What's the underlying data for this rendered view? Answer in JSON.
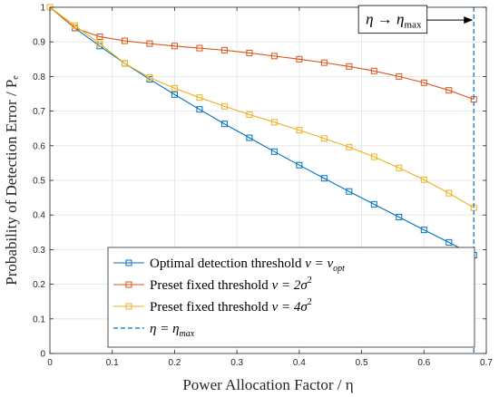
{
  "chart_data": {
    "type": "line",
    "xlabel": "Power Allocation Factor / η",
    "ylabel": "Probability of Detection Error / Pₑ",
    "xlim": [
      0,
      0.7
    ],
    "ylim": [
      0,
      1
    ],
    "xticks": [
      0,
      0.1,
      0.2,
      0.3,
      0.4,
      0.5,
      0.6,
      0.7
    ],
    "xtick_labels": [
      "0",
      "0.1",
      "0.2",
      "0.3",
      "0.4",
      "0.5",
      "0.6",
      "0.7"
    ],
    "yticks": [
      0,
      0.1,
      0.2,
      0.3,
      0.4,
      0.5,
      0.6,
      0.7,
      0.8,
      0.9,
      1
    ],
    "ytick_labels": [
      "0",
      "0.1",
      "0.2",
      "0.3",
      "0.4",
      "0.5",
      "0.6",
      "0.7",
      "0.8",
      "0.9",
      "1"
    ],
    "grid": true,
    "legend_position": "bottom-right",
    "x": [
      0,
      0.04,
      0.08,
      0.12,
      0.16,
      0.2,
      0.24,
      0.28,
      0.32,
      0.36,
      0.4,
      0.44,
      0.48,
      0.52,
      0.56,
      0.6,
      0.64,
      0.68
    ],
    "series": [
      {
        "name": "Optimal detection threshold ν = ν_opt",
        "color": "#0072BD",
        "marker": "square",
        "values": [
          1.0,
          0.94,
          0.888,
          0.838,
          0.792,
          0.748,
          0.705,
          0.663,
          0.623,
          0.583,
          0.544,
          0.506,
          0.468,
          0.431,
          0.394,
          0.357,
          0.321,
          0.284
        ]
      },
      {
        "name": "Preset fixed threshold ν = 2σ²",
        "color": "#D95319",
        "marker": "square",
        "values": [
          1.0,
          0.94,
          0.915,
          0.903,
          0.895,
          0.888,
          0.882,
          0.876,
          0.868,
          0.859,
          0.85,
          0.84,
          0.829,
          0.816,
          0.8,
          0.782,
          0.76,
          0.734
        ]
      },
      {
        "name": "Preset fixed threshold ν = 4σ²",
        "color": "#EDB120",
        "marker": "square",
        "values": [
          1.0,
          0.947,
          0.895,
          0.838,
          0.797,
          0.766,
          0.739,
          0.714,
          0.69,
          0.668,
          0.645,
          0.621,
          0.596,
          0.568,
          0.536,
          0.502,
          0.463,
          0.421
        ]
      },
      {
        "name": "η = η_max",
        "color": "#0072BD",
        "style": "dashed-vertical",
        "x_value": 0.68
      }
    ],
    "legend": {
      "entries": [
        {
          "prefix": "Optimal detection threshold ",
          "math": "ν = ν",
          "sub": "opt",
          "sup": "",
          "tail": ""
        },
        {
          "prefix": "Preset fixed threshold ",
          "math": "ν = 2σ",
          "sub": "",
          "sup": "2",
          "tail": ""
        },
        {
          "prefix": "Preset fixed threshold ",
          "math": "ν = 4σ",
          "sub": "",
          "sup": "2",
          "tail": ""
        },
        {
          "prefix": "",
          "math": "η = η",
          "sub": "max",
          "sup": "",
          "tail": ""
        }
      ]
    },
    "annotation": {
      "text_main": "η → η",
      "text_sub": "max",
      "box_x": [
        0.495,
        0.605
      ],
      "box_y": [
        0.925,
        1.005
      ],
      "arrow_from_x": 0.605,
      "arrow_to_x": 0.68,
      "arrow_y": 0.963
    }
  }
}
